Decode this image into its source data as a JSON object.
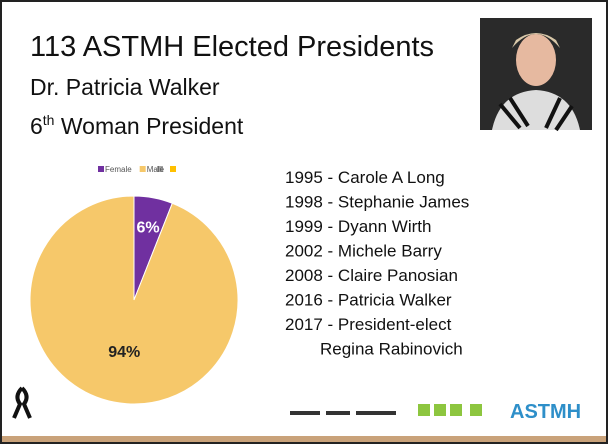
{
  "slide": {
    "title": "113 ASTMH Elected Presidents",
    "subtitle": "Dr. Patricia Walker",
    "line3": {
      "number": "6",
      "superscript": "th",
      "rest": " Woman President"
    },
    "list": [
      "1995 - Carole A Long",
      "1998 - Stephanie James",
      "1999 - Dyann Wirth",
      "2002 - Michele Barry",
      "2008 - Claire Panosian",
      "2016 - Patricia Walker",
      "2017 - President-elect",
      "Regina Rabinovich"
    ],
    "logo": "ASTMH"
  },
  "chart_data": {
    "type": "pie",
    "categories": [
      "Female",
      "Male"
    ],
    "values": [
      6,
      94
    ],
    "value_labels": [
      "6%",
      "94%"
    ],
    "colors": [
      "#7030a0",
      "#f6c86a"
    ]
  }
}
